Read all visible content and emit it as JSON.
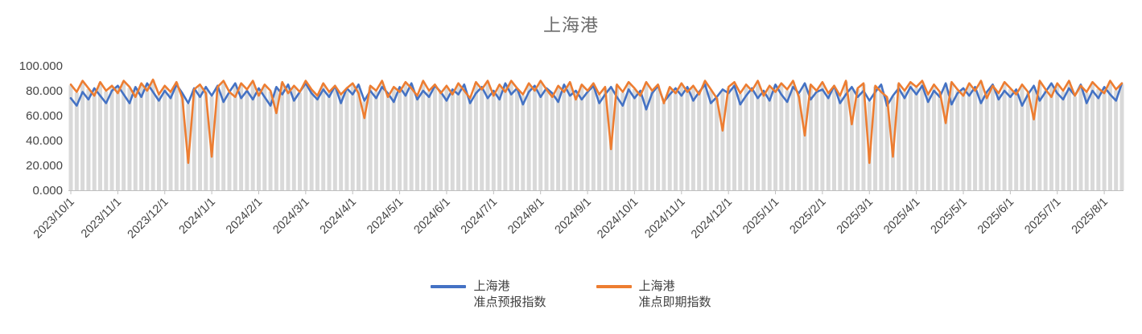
{
  "chart_data": {
    "type": "line",
    "title": "上海港",
    "ylabel": "",
    "xlabel": "",
    "ylim": [
      0,
      100
    ],
    "y_tick_labels": [
      "100.000",
      "80.000",
      "60.000",
      "40.000",
      "20.000",
      "0.000"
    ],
    "x_tick_labels": [
      "2023/10/1",
      "2023/11/1",
      "2023/12/1",
      "2024/1/1",
      "2024/2/1",
      "2024/3/1",
      "2024/4/1",
      "2024/5/1",
      "2024/6/1",
      "2024/7/1",
      "2024/8/1",
      "2024/9/1",
      "2024/10/1",
      "2024/11/1",
      "2024/12/1",
      "2025/1/1",
      "2025/2/1",
      "2025/3/1",
      "2025/4/1",
      "2025/5/1",
      "2025/6/1",
      "2025/7/1",
      "2025/8/1"
    ],
    "points_per_tick": 8,
    "legend_position": "bottom",
    "grid": false,
    "drop_lines": true,
    "colors": {
      "drop_line": "#D9D9D9",
      "axis_line": "#BFBFBF",
      "tick_mark": "#BFBFBF",
      "axis_label": "#444444",
      "title": "#6b6b6b"
    },
    "series": [
      {
        "name": "上海港 准点预报指数",
        "legend_lines": [
          "上海港",
          "准点预报指数"
        ],
        "color": "#4472C4",
        "values": [
          74,
          68,
          79,
          73,
          82,
          76,
          70,
          80,
          84,
          77,
          70,
          83,
          75,
          86,
          79,
          72,
          80,
          74,
          85,
          78,
          70,
          82,
          75,
          83,
          76,
          84,
          71,
          79,
          86,
          74,
          80,
          73,
          82,
          75,
          68,
          83,
          77,
          85,
          72,
          79,
          86,
          78,
          73,
          81,
          75,
          84,
          70,
          82,
          77,
          85,
          72,
          80,
          74,
          83,
          78,
          71,
          83,
          76,
          86,
          73,
          80,
          75,
          84,
          79,
          72,
          81,
          77,
          85,
          70,
          78,
          83,
          74,
          80,
          73,
          86,
          77,
          82,
          69,
          79,
          84,
          75,
          82,
          78,
          71,
          85,
          76,
          80,
          73,
          79,
          84,
          70,
          77,
          83,
          75,
          68,
          81,
          74,
          80,
          65,
          78,
          84,
          71,
          77,
          82,
          76,
          83,
          72,
          79,
          85,
          70,
          75,
          81,
          78,
          84,
          69,
          76,
          82,
          74,
          80,
          72,
          85,
          77,
          71,
          83,
          78,
          86,
          73,
          79,
          81,
          74,
          84,
          70,
          77,
          83,
          75,
          80,
          72,
          79,
          85,
          68,
          76,
          82,
          74,
          83,
          77,
          84,
          71,
          80,
          75,
          86,
          69,
          78,
          82,
          76,
          83,
          70,
          79,
          85,
          73,
          80,
          75,
          81,
          68,
          77,
          84,
          72,
          79,
          86,
          78,
          73,
          82,
          76,
          85,
          70,
          80,
          74,
          83,
          77,
          72,
          86
        ]
      },
      {
        "name": "上海港 准点即期指数",
        "legend_lines": [
          "上海港",
          "准点即期指数"
        ],
        "color": "#ED7D31",
        "values": [
          85,
          79,
          88,
          82,
          76,
          87,
          80,
          84,
          78,
          88,
          83,
          75,
          86,
          80,
          89,
          77,
          84,
          79,
          87,
          74,
          22,
          81,
          85,
          78,
          27,
          83,
          88,
          79,
          75,
          86,
          81,
          88,
          76,
          85,
          80,
          62,
          87,
          78,
          84,
          79,
          88,
          81,
          76,
          86,
          79,
          84,
          77,
          82,
          86,
          78,
          58,
          84,
          80,
          88,
          75,
          83,
          79,
          87,
          82,
          76,
          88,
          80,
          85,
          78,
          84,
          77,
          86,
          80,
          74,
          87,
          81,
          88,
          76,
          85,
          79,
          88,
          82,
          77,
          86,
          80,
          88,
          81,
          75,
          84,
          79,
          87,
          73,
          85,
          80,
          86,
          77,
          83,
          33,
          85,
          79,
          87,
          82,
          76,
          87,
          80,
          85,
          70,
          83,
          78,
          86,
          79,
          84,
          77,
          88,
          81,
          74,
          48,
          83,
          87,
          78,
          85,
          80,
          88,
          76,
          84,
          79,
          86,
          81,
          88,
          75,
          44,
          85,
          80,
          87,
          78,
          84,
          76,
          88,
          53,
          82,
          86,
          22,
          84,
          79,
          75,
          27,
          86,
          80,
          87,
          83,
          88,
          77,
          85,
          79,
          54,
          87,
          81,
          76,
          86,
          80,
          88,
          74,
          84,
          78,
          87,
          82,
          77,
          85,
          79,
          57,
          88,
          81,
          75,
          86,
          80,
          88,
          76,
          84,
          79,
          87,
          82,
          78,
          88,
          81,
          86
        ]
      }
    ]
  }
}
